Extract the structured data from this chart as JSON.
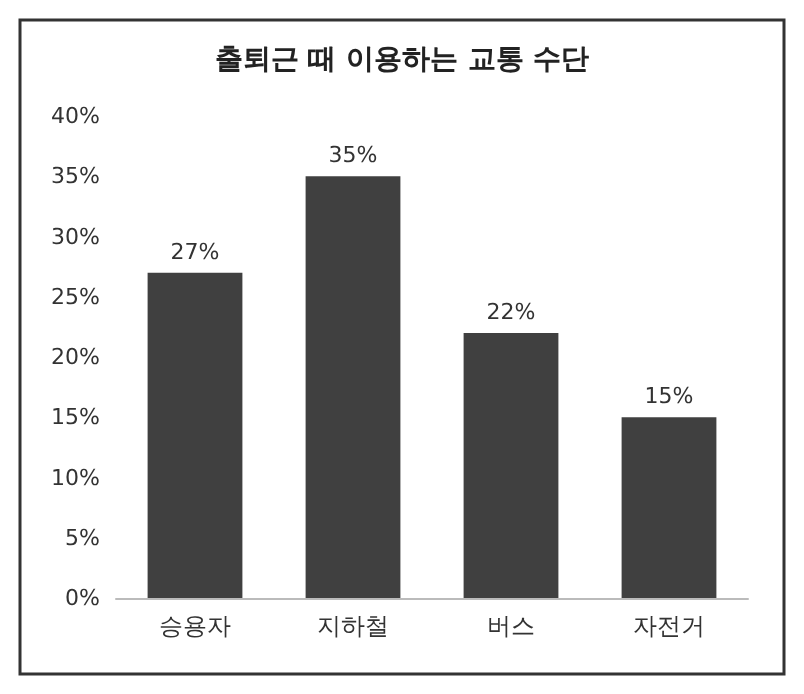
{
  "chart_data": {
    "type": "bar",
    "title": "출퇴근 때 이용하는 교통 수단",
    "categories": [
      "승용자",
      "지하철",
      "버스",
      "자전거"
    ],
    "values": [
      27,
      35,
      22,
      15
    ],
    "value_labels": [
      "27%",
      "35%",
      "22%",
      "15%"
    ],
    "color": "#404040",
    "ylim": [
      0,
      40
    ],
    "yticks": [
      {
        "value": 0,
        "label": "0%"
      },
      {
        "value": 5,
        "label": "5%"
      },
      {
        "value": 10,
        "label": "10%"
      },
      {
        "value": 15,
        "label": "15%"
      },
      {
        "value": 20,
        "label": "20%"
      },
      {
        "value": 25,
        "label": "25%"
      },
      {
        "value": 30,
        "label": "30%"
      },
      {
        "value": 35,
        "label": "35%"
      },
      {
        "value": 40,
        "label": "40%"
      }
    ],
    "grid": false
  }
}
